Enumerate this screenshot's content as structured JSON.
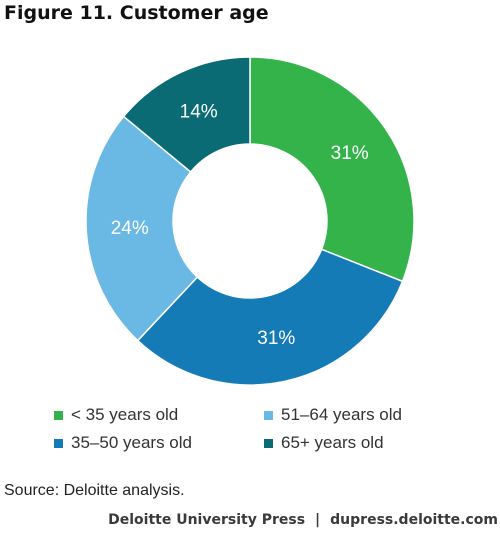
{
  "chart_data": {
    "type": "pie",
    "variant": "donut",
    "title": "Figure 11. Customer age",
    "categories": [
      "< 35 years old",
      "35–50 years old",
      "51–64 years old",
      "65+ years old"
    ],
    "values": [
      31,
      31,
      24,
      14
    ],
    "unit": "%",
    "value_labels": [
      "31%",
      "31%",
      "24%",
      "14%"
    ],
    "colors": [
      "#34b34a",
      "#157bb7",
      "#6ab8e4",
      "#0a6b75"
    ],
    "legend_position": "bottom"
  },
  "legend": {
    "items": [
      {
        "label": "< 35 years old",
        "color": "#34b34a"
      },
      {
        "label": "51–64 years old",
        "color": "#6ab8e4"
      },
      {
        "label": "35–50 years old",
        "color": "#157bb7"
      },
      {
        "label": "65+ years old",
        "color": "#0a6b75"
      }
    ]
  },
  "source": "Source: Deloitte analysis.",
  "footer": {
    "publisher": "Deloitte University Press",
    "separator": "|",
    "site": "dupress.deloitte.com"
  }
}
